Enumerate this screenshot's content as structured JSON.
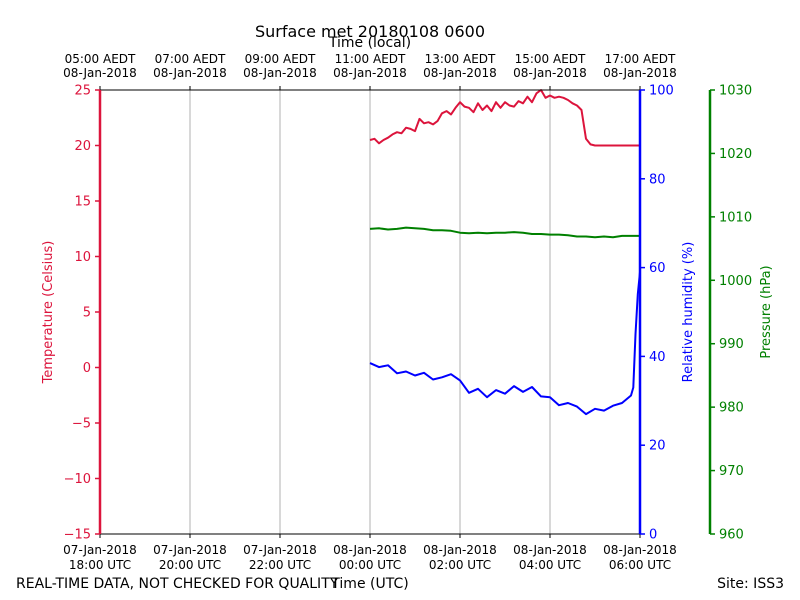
{
  "chart_data": {
    "type": "line",
    "title": "Surface met 20180108 0600",
    "top_xlabel": "Time (local)",
    "xlabel": "Time (UTC)",
    "footer_left": "REAL-TIME DATA, NOT CHECKED FOR QUALITY",
    "footer_right": "Site: ISS3",
    "xlim_hours": [
      0,
      12
    ],
    "x_ticks": [
      {
        "h": 0,
        "utc": [
          "07-Jan-2018",
          "18:00 UTC"
        ],
        "local": [
          "05:00 AEDT",
          "08-Jan-2018"
        ]
      },
      {
        "h": 2,
        "utc": [
          "07-Jan-2018",
          "20:00 UTC"
        ],
        "local": [
          "07:00 AEDT",
          "08-Jan-2018"
        ]
      },
      {
        "h": 4,
        "utc": [
          "07-Jan-2018",
          "22:00 UTC"
        ],
        "local": [
          "09:00 AEDT",
          "08-Jan-2018"
        ]
      },
      {
        "h": 6,
        "utc": [
          "08-Jan-2018",
          "00:00 UTC"
        ],
        "local": [
          "11:00 AEDT",
          "08-Jan-2018"
        ]
      },
      {
        "h": 8,
        "utc": [
          "08-Jan-2018",
          "02:00 UTC"
        ],
        "local": [
          "13:00 AEDT",
          "08-Jan-2018"
        ]
      },
      {
        "h": 10,
        "utc": [
          "08-Jan-2018",
          "04:00 UTC"
        ],
        "local": [
          "15:00 AEDT",
          "08-Jan-2018"
        ]
      },
      {
        "h": 12,
        "utc": [
          "08-Jan-2018",
          "06:00 UTC"
        ],
        "local": [
          "17:00 AEDT",
          "08-Jan-2018"
        ]
      }
    ],
    "axes": [
      {
        "id": "temp",
        "label": "Temperature (Celsius)",
        "lim": [
          -15,
          25
        ],
        "ticks": [
          -15,
          -10,
          -5,
          0,
          5,
          10,
          15,
          20,
          25
        ],
        "color": "#dc143c",
        "side": "left"
      },
      {
        "id": "rh",
        "label": "Relative humidity (%)",
        "lim": [
          0,
          100
        ],
        "ticks": [
          0,
          20,
          40,
          60,
          80,
          100
        ],
        "color": "#0000ff",
        "side": "right"
      },
      {
        "id": "pres",
        "label": "Pressure (hPa)",
        "lim": [
          960,
          1030
        ],
        "ticks": [
          960,
          970,
          980,
          990,
          1000,
          1010,
          1020,
          1030
        ],
        "color": "#008000",
        "side": "right-outer"
      }
    ],
    "series": [
      {
        "name": "Temperature",
        "axis": "temp",
        "color": "#dc143c",
        "x": [
          6.0,
          6.1,
          6.2,
          6.3,
          6.4,
          6.5,
          6.6,
          6.7,
          6.8,
          6.9,
          7.0,
          7.1,
          7.2,
          7.3,
          7.4,
          7.5,
          7.6,
          7.7,
          7.8,
          7.9,
          8.0,
          8.1,
          8.2,
          8.3,
          8.4,
          8.5,
          8.6,
          8.7,
          8.8,
          8.9,
          9.0,
          9.1,
          9.2,
          9.3,
          9.4,
          9.5,
          9.6,
          9.7,
          9.8,
          9.9,
          10.0,
          10.1,
          10.2,
          10.3,
          10.4,
          10.5,
          10.6,
          10.7,
          10.8,
          10.9,
          11.0,
          11.1,
          11.2,
          11.3,
          11.4,
          11.5,
          11.6,
          11.7,
          11.8,
          11.9,
          12.0
        ],
        "values": [
          20.5,
          20.6,
          20.2,
          20.5,
          20.7,
          21.0,
          21.2,
          21.1,
          21.6,
          21.5,
          21.3,
          22.4,
          22.0,
          22.1,
          21.9,
          22.2,
          22.9,
          23.1,
          22.8,
          23.4,
          23.9,
          23.5,
          23.4,
          23.0,
          23.8,
          23.2,
          23.6,
          23.1,
          23.9,
          23.4,
          23.9,
          23.6,
          23.5,
          24.0,
          23.8,
          24.4,
          23.9,
          24.7,
          25.0,
          24.3,
          24.5,
          24.3,
          24.4,
          24.3,
          24.1,
          23.8,
          23.6,
          23.2,
          20.6,
          20.1,
          20.0,
          20.0,
          20.0,
          20.0,
          20.0,
          20.0,
          20.0,
          20.0,
          20.0,
          20.0,
          20.0
        ]
      },
      {
        "name": "Relative humidity",
        "axis": "rh",
        "color": "#0000ff",
        "x": [
          6.0,
          6.2,
          6.4,
          6.6,
          6.8,
          7.0,
          7.2,
          7.4,
          7.6,
          7.8,
          8.0,
          8.2,
          8.4,
          8.6,
          8.8,
          9.0,
          9.2,
          9.4,
          9.6,
          9.8,
          10.0,
          10.2,
          10.4,
          10.6,
          10.8,
          11.0,
          11.2,
          11.4,
          11.6,
          11.8,
          11.85,
          11.9,
          11.95,
          12.0
        ],
        "values": [
          38.5,
          37.6,
          38.0,
          36.2,
          36.6,
          35.7,
          36.3,
          34.8,
          35.3,
          36.0,
          34.6,
          31.8,
          32.7,
          30.8,
          32.4,
          31.6,
          33.3,
          32.0,
          33.1,
          31.0,
          30.8,
          29.0,
          29.5,
          28.7,
          27.0,
          28.2,
          27.8,
          28.9,
          29.5,
          31.2,
          33.0,
          45.0,
          54.0,
          59.0
        ]
      },
      {
        "name": "Pressure",
        "axis": "pres",
        "color": "#008000",
        "x": [
          6.0,
          6.2,
          6.4,
          6.6,
          6.8,
          7.0,
          7.2,
          7.4,
          7.6,
          7.8,
          8.0,
          8.2,
          8.4,
          8.6,
          8.8,
          9.0,
          9.2,
          9.4,
          9.6,
          9.8,
          10.0,
          10.2,
          10.4,
          10.6,
          10.8,
          11.0,
          11.2,
          11.4,
          11.6,
          11.8,
          12.0
        ],
        "values": [
          1008.1,
          1008.2,
          1008.0,
          1008.1,
          1008.3,
          1008.2,
          1008.1,
          1007.9,
          1007.9,
          1007.8,
          1007.5,
          1007.4,
          1007.5,
          1007.4,
          1007.5,
          1007.5,
          1007.6,
          1007.5,
          1007.3,
          1007.3,
          1007.2,
          1007.2,
          1007.1,
          1006.9,
          1006.9,
          1006.8,
          1006.9,
          1006.8,
          1007.0,
          1007.0,
          1007.0
        ]
      }
    ]
  }
}
